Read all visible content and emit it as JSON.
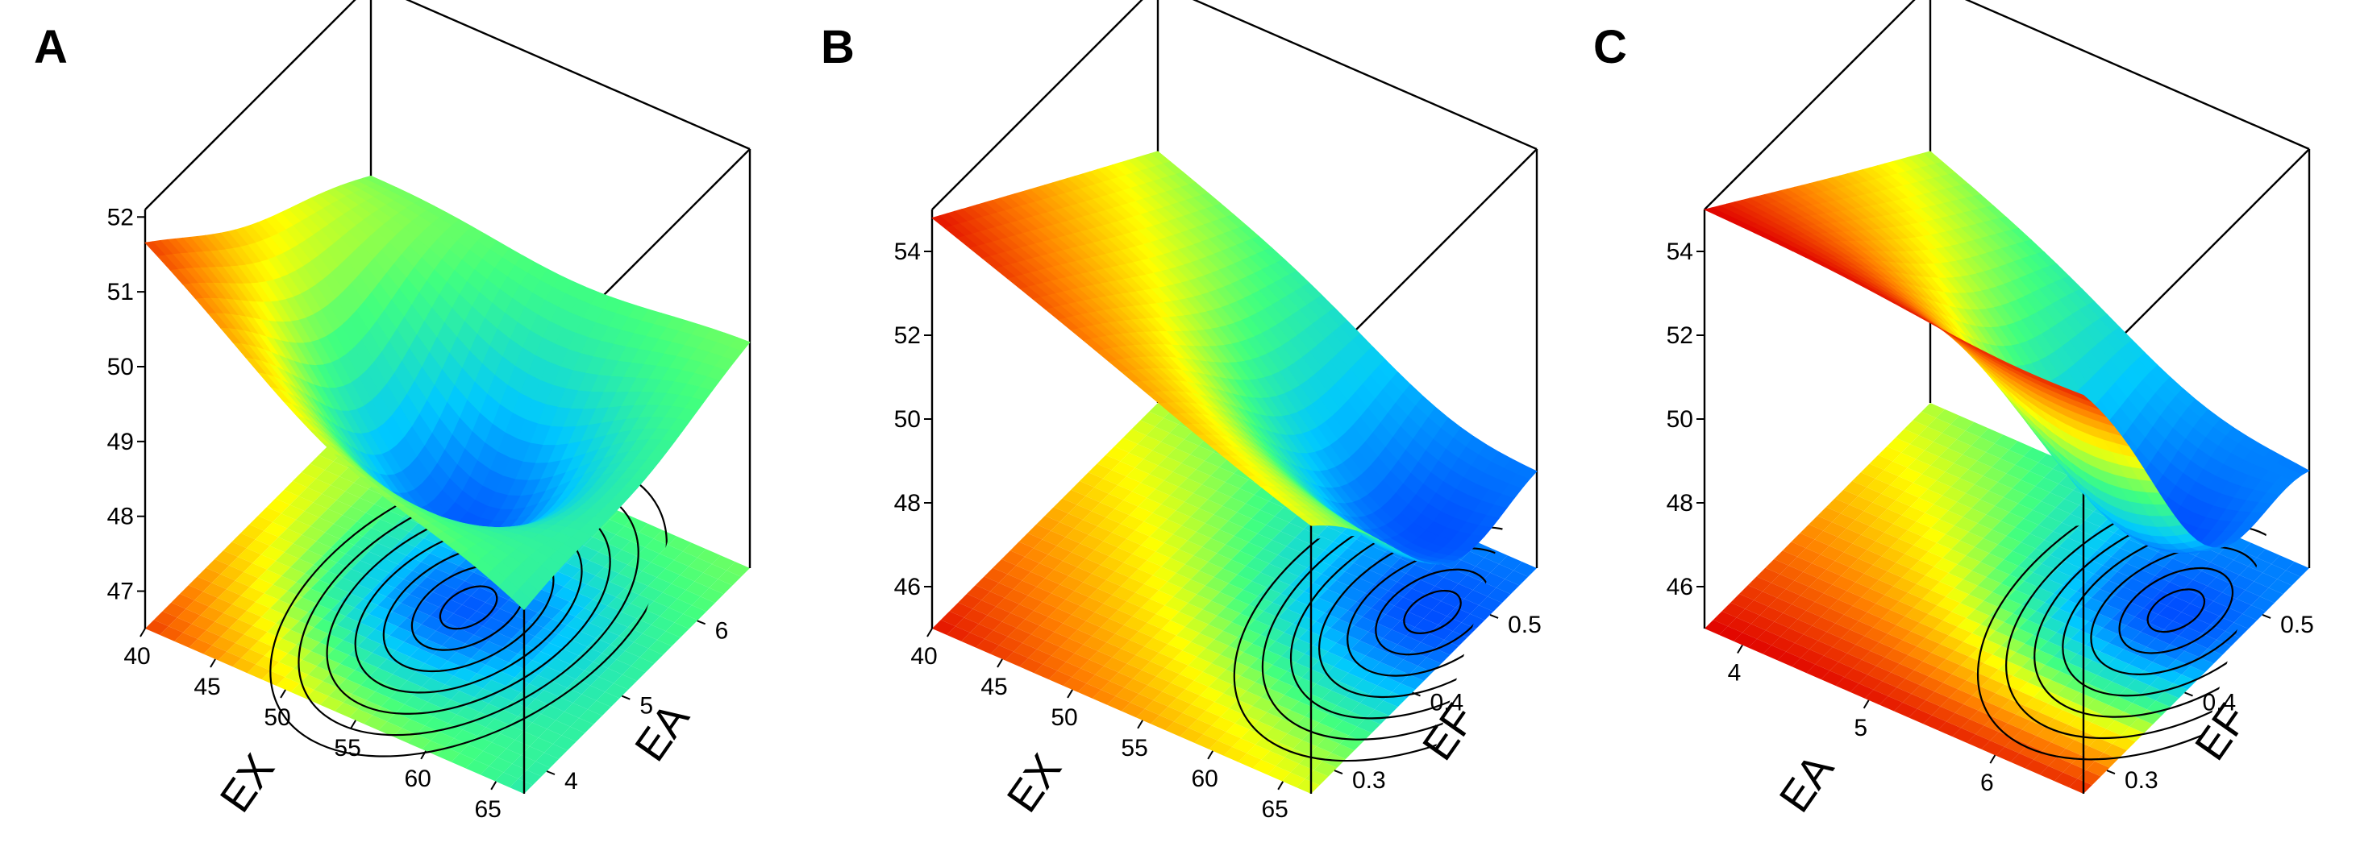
{
  "chart_data": [
    {
      "panel": "A",
      "type": "surface3d",
      "x": {
        "label": "EX",
        "ticks": [
          40,
          45,
          50,
          55,
          60,
          65
        ],
        "range": [
          40,
          67
        ]
      },
      "y": {
        "label": "EA",
        "ticks": [
          4,
          5,
          6
        ],
        "range": [
          3.7,
          6.7
        ]
      },
      "z": {
        "ticks": [
          47,
          48,
          49,
          50,
          51,
          52
        ],
        "range": [
          46.5,
          52.1
        ]
      },
      "surface": {
        "min_point": {
          "x": 55,
          "y": 5.2,
          "z": 47.6
        },
        "corner_values": {
          "x_low_y_low": 51.7,
          "x_high_y_low": 48.9,
          "x_low_y_high": 49.5,
          "x_high_y_high": 49.5
        }
      },
      "contour_floor": true,
      "colormap": [
        "#00008b",
        "#0044ff",
        "#00c8ff",
        "#40ff80",
        "#ffff00",
        "#ff8000",
        "#e00000"
      ]
    },
    {
      "panel": "B",
      "type": "surface3d",
      "x": {
        "label": "EX",
        "ticks": [
          40,
          45,
          50,
          55,
          60,
          65
        ],
        "range": [
          40,
          67
        ]
      },
      "y": {
        "label": "EF",
        "ticks": [
          0.3,
          0.4,
          0.5
        ],
        "range": [
          0.27,
          0.56
        ]
      },
      "z": {
        "ticks": [
          46,
          48,
          50,
          52,
          54
        ],
        "range": [
          45,
          55
        ]
      },
      "surface": {
        "min_point": {
          "x": 64,
          "y": 0.48,
          "z": 46.8
        },
        "corner_values": {
          "x_low_y_low": 54.8,
          "x_high_y_low": 51.5,
          "x_low_y_high": 51.0,
          "x_high_y_high": 47.5
        }
      },
      "contour_floor": true,
      "colormap": [
        "#00008b",
        "#0044ff",
        "#00c8ff",
        "#40ff80",
        "#ffff00",
        "#ff8000",
        "#e00000"
      ]
    },
    {
      "panel": "C",
      "type": "surface3d",
      "x": {
        "label": "EA",
        "ticks": [
          4,
          5,
          6
        ],
        "range": [
          3.7,
          6.7
        ]
      },
      "y": {
        "label": "EF",
        "ticks": [
          0.3,
          0.4,
          0.5
        ],
        "range": [
          0.27,
          0.56
        ]
      },
      "z": {
        "ticks": [
          46,
          48,
          50,
          52,
          54
        ],
        "range": [
          45,
          55
        ]
      },
      "surface": {
        "min_point": {
          "x": 6.2,
          "y": 0.47,
          "z": 46.8
        },
        "corner_values": {
          "x_low_y_low": 55.0,
          "x_high_y_low": 54.8,
          "x_low_y_high": 51.0,
          "x_high_y_high": 47.3
        }
      },
      "contour_floor": true,
      "colormap": [
        "#00008b",
        "#0044ff",
        "#00c8ff",
        "#40ff80",
        "#ffff00",
        "#ff8000",
        "#e00000"
      ]
    }
  ]
}
